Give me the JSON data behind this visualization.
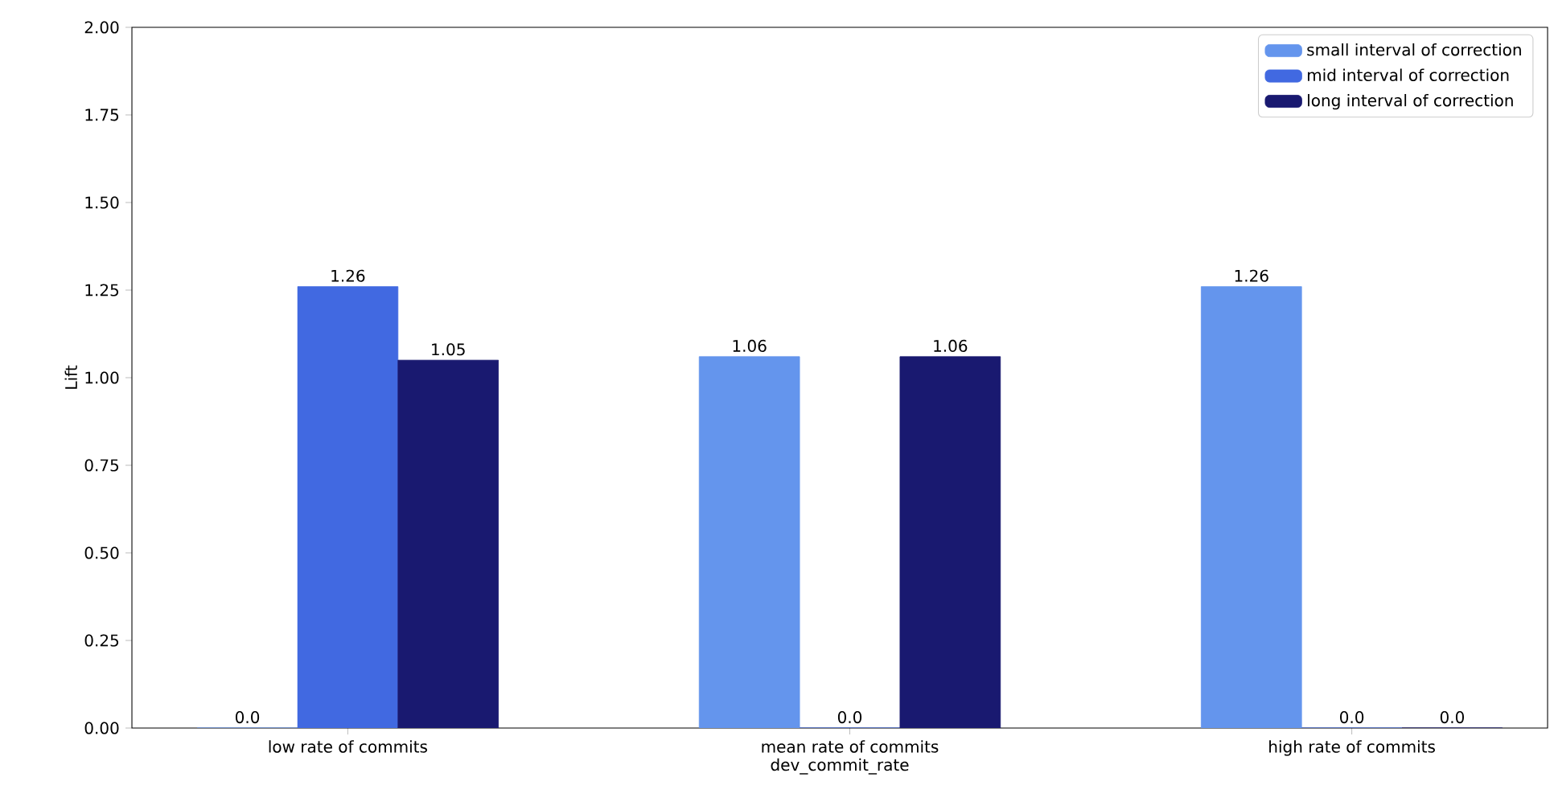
{
  "chart_data": {
    "type": "bar",
    "xlabel": "dev_commit_rate",
    "ylabel": "Lift",
    "categories": [
      "low rate of commits",
      "mean rate of commits",
      "high rate of commits"
    ],
    "series": [
      {
        "name": "small interval of correction",
        "color": "#6495ed",
        "values": [
          0.0,
          1.06,
          1.26
        ],
        "value_labels": [
          "0.0",
          "1.06",
          "1.26"
        ]
      },
      {
        "name": "mid interval of correction",
        "color": "#4169e1",
        "values": [
          1.26,
          0.0,
          0.0
        ],
        "value_labels": [
          "1.26",
          "0.0",
          "0.0"
        ]
      },
      {
        "name": "long interval of correction",
        "color": "#191970",
        "values": [
          1.05,
          1.06,
          0.0
        ],
        "value_labels": [
          "1.05",
          "1.06",
          "0.0"
        ]
      }
    ],
    "ylim": [
      0,
      2
    ],
    "yticks": [
      {
        "value": 0,
        "label": "0.00"
      },
      {
        "value": 0.25,
        "label": "0.25"
      },
      {
        "value": 0.5,
        "label": "0.50"
      },
      {
        "value": 0.75,
        "label": "0.75"
      },
      {
        "value": 1.0,
        "label": "1.00"
      },
      {
        "value": 1.25,
        "label": "1.25"
      },
      {
        "value": 1.5,
        "label": "1.50"
      },
      {
        "value": 1.75,
        "label": "1.75"
      },
      {
        "value": 2.0,
        "label": "2.00"
      }
    ],
    "legend": "top right",
    "grid": false
  }
}
